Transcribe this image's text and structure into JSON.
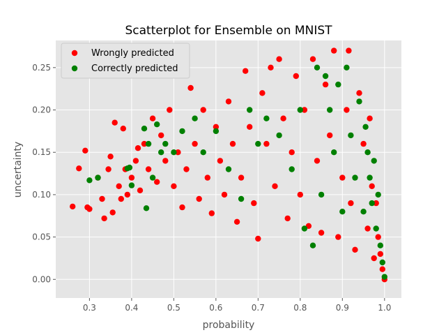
{
  "chart_data": {
    "type": "scatter",
    "title": "Scatterplot for Ensemble on MNIST",
    "xlabel": "probability",
    "ylabel": "uncertainty",
    "xlim": [
      0.22,
      1.04
    ],
    "ylim": [
      -0.022,
      0.282
    ],
    "x_ticks": [
      "0.3",
      "0.4",
      "0.5",
      "0.6",
      "0.7",
      "0.8",
      "0.9",
      "1.0"
    ],
    "y_ticks": [
      "0.00",
      "0.05",
      "0.10",
      "0.15",
      "0.20",
      "0.25"
    ],
    "grid": true,
    "legend_position": "top-left",
    "series": [
      {
        "name": "Wrongly predicted",
        "color": "#ff0000",
        "points": [
          [
            0.26,
            0.086
          ],
          [
            0.275,
            0.131
          ],
          [
            0.29,
            0.152
          ],
          [
            0.295,
            0.085
          ],
          [
            0.3,
            0.083
          ],
          [
            0.32,
            0.12
          ],
          [
            0.33,
            0.095
          ],
          [
            0.335,
            0.072
          ],
          [
            0.345,
            0.13
          ],
          [
            0.35,
            0.145
          ],
          [
            0.355,
            0.079
          ],
          [
            0.36,
            0.185
          ],
          [
            0.37,
            0.11
          ],
          [
            0.375,
            0.095
          ],
          [
            0.38,
            0.178
          ],
          [
            0.385,
            0.13
          ],
          [
            0.39,
            0.1
          ],
          [
            0.4,
            0.12
          ],
          [
            0.41,
            0.14
          ],
          [
            0.415,
            0.155
          ],
          [
            0.42,
            0.105
          ],
          [
            0.43,
            0.16
          ],
          [
            0.44,
            0.13
          ],
          [
            0.45,
            0.19
          ],
          [
            0.46,
            0.115
          ],
          [
            0.47,
            0.17
          ],
          [
            0.48,
            0.14
          ],
          [
            0.49,
            0.2
          ],
          [
            0.5,
            0.11
          ],
          [
            0.51,
            0.15
          ],
          [
            0.52,
            0.085
          ],
          [
            0.53,
            0.13
          ],
          [
            0.54,
            0.226
          ],
          [
            0.55,
            0.16
          ],
          [
            0.56,
            0.095
          ],
          [
            0.57,
            0.2
          ],
          [
            0.58,
            0.12
          ],
          [
            0.59,
            0.078
          ],
          [
            0.6,
            0.18
          ],
          [
            0.61,
            0.14
          ],
          [
            0.62,
            0.1
          ],
          [
            0.63,
            0.21
          ],
          [
            0.64,
            0.16
          ],
          [
            0.65,
            0.068
          ],
          [
            0.66,
            0.12
          ],
          [
            0.67,
            0.246
          ],
          [
            0.68,
            0.18
          ],
          [
            0.69,
            0.09
          ],
          [
            0.7,
            0.048
          ],
          [
            0.71,
            0.22
          ],
          [
            0.72,
            0.16
          ],
          [
            0.73,
            0.25
          ],
          [
            0.74,
            0.11
          ],
          [
            0.75,
            0.26
          ],
          [
            0.76,
            0.19
          ],
          [
            0.77,
            0.072
          ],
          [
            0.78,
            0.15
          ],
          [
            0.79,
            0.24
          ],
          [
            0.8,
            0.1
          ],
          [
            0.81,
            0.2
          ],
          [
            0.82,
            0.063
          ],
          [
            0.83,
            0.26
          ],
          [
            0.84,
            0.14
          ],
          [
            0.85,
            0.055
          ],
          [
            0.86,
            0.23
          ],
          [
            0.87,
            0.17
          ],
          [
            0.88,
            0.27
          ],
          [
            0.89,
            0.05
          ],
          [
            0.9,
            0.12
          ],
          [
            0.91,
            0.2
          ],
          [
            0.915,
            0.27
          ],
          [
            0.92,
            0.09
          ],
          [
            0.93,
            0.035
          ],
          [
            0.94,
            0.22
          ],
          [
            0.95,
            0.16
          ],
          [
            0.96,
            0.06
          ],
          [
            0.965,
            0.19
          ],
          [
            0.97,
            0.11
          ],
          [
            0.975,
            0.025
          ],
          [
            0.98,
            0.09
          ],
          [
            0.985,
            0.05
          ],
          [
            0.99,
            0.03
          ],
          [
            0.995,
            0.012
          ],
          [
            1.0,
            0.0
          ]
        ]
      },
      {
        "name": "Correctly predicted",
        "color": "#008000",
        "points": [
          [
            0.3,
            0.117
          ],
          [
            0.32,
            0.12
          ],
          [
            0.39,
            0.131
          ],
          [
            0.395,
            0.132
          ],
          [
            0.4,
            0.111
          ],
          [
            0.43,
            0.178
          ],
          [
            0.435,
            0.084
          ],
          [
            0.44,
            0.16
          ],
          [
            0.45,
            0.12
          ],
          [
            0.46,
            0.183
          ],
          [
            0.47,
            0.15
          ],
          [
            0.48,
            0.16
          ],
          [
            0.5,
            0.15
          ],
          [
            0.52,
            0.175
          ],
          [
            0.55,
            0.19
          ],
          [
            0.57,
            0.15
          ],
          [
            0.6,
            0.175
          ],
          [
            0.63,
            0.13
          ],
          [
            0.66,
            0.095
          ],
          [
            0.68,
            0.2
          ],
          [
            0.7,
            0.16
          ],
          [
            0.72,
            0.19
          ],
          [
            0.75,
            0.17
          ],
          [
            0.78,
            0.13
          ],
          [
            0.8,
            0.2
          ],
          [
            0.81,
            0.06
          ],
          [
            0.83,
            0.04
          ],
          [
            0.84,
            0.25
          ],
          [
            0.85,
            0.1
          ],
          [
            0.86,
            0.24
          ],
          [
            0.87,
            0.2
          ],
          [
            0.88,
            0.15
          ],
          [
            0.89,
            0.23
          ],
          [
            0.9,
            0.08
          ],
          [
            0.91,
            0.25
          ],
          [
            0.92,
            0.17
          ],
          [
            0.93,
            0.12
          ],
          [
            0.94,
            0.21
          ],
          [
            0.95,
            0.08
          ],
          [
            0.955,
            0.18
          ],
          [
            0.96,
            0.15
          ],
          [
            0.965,
            0.12
          ],
          [
            0.97,
            0.09
          ],
          [
            0.975,
            0.14
          ],
          [
            0.98,
            0.06
          ],
          [
            0.985,
            0.1
          ],
          [
            0.99,
            0.04
          ],
          [
            0.995,
            0.02
          ],
          [
            1.0,
            0.003
          ]
        ]
      }
    ]
  }
}
